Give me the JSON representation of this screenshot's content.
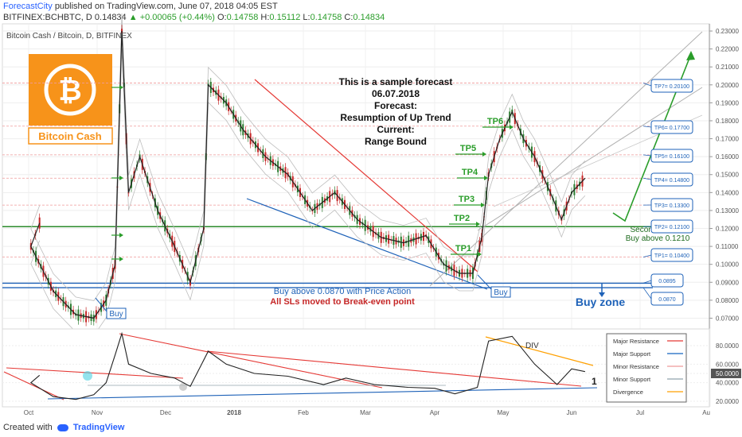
{
  "header": {
    "author": "ForecastCity",
    "published_text": "published on TradingView.com, June 07, 2018 04:05 EST",
    "symbol": "BITFINEX:BCHBTC, D",
    "last": "0.14834",
    "change": "+0.00065 (+0.44%)",
    "ohlc": {
      "o": "0.14758",
      "h": "0.15112",
      "l": "0.14758",
      "c": "0.14834"
    },
    "o_label": "O:",
    "h_label": "H:",
    "l_label": "L:",
    "c_label": "C:"
  },
  "footer": {
    "created_with": "Created with",
    "brand": "TradingView"
  },
  "chart_data": [
    {
      "type": "line",
      "name_label": "Bitcoin Cash / Bitcoin, D, BITFINEX",
      "logo_text": "Bitcoin Cash",
      "x_labels": [
        "Oct",
        "Nov",
        "Dec",
        "2018",
        "Feb",
        "Mar",
        "Apr",
        "May",
        "Jun",
        "Jul",
        "Au"
      ],
      "y_ticks": [
        "0.23000",
        "0.22000",
        "0.21000",
        "0.20000",
        "0.19000",
        "0.18000",
        "0.17000",
        "0.16000",
        "0.15000",
        "0.14000",
        "0.13000",
        "0.12000",
        "0.11000",
        "0.10000",
        "0.09000",
        "0.08000",
        "0.07000"
      ],
      "ylim": [
        0.064,
        0.234
      ],
      "price_path": [
        {
          "x": "Sep 25",
          "y": 0.123
        },
        {
          "x": "Oct 2",
          "y": 0.11
        },
        {
          "x": "Oct 12",
          "y": 0.085
        },
        {
          "x": "Oct 22",
          "y": 0.072
        },
        {
          "x": "Oct 30",
          "y": 0.07
        },
        {
          "x": "Nov 5",
          "y": 0.08
        },
        {
          "x": "Nov 9",
          "y": 0.1
        },
        {
          "x": "Nov 12",
          "y": 0.23
        },
        {
          "x": "Nov 15",
          "y": 0.14
        },
        {
          "x": "Nov 20",
          "y": 0.16
        },
        {
          "x": "Nov 28",
          "y": 0.13
        },
        {
          "x": "Dec 5",
          "y": 0.11
        },
        {
          "x": "Dec 12",
          "y": 0.09
        },
        {
          "x": "Dec 18",
          "y": 0.12
        },
        {
          "x": "Dec 20",
          "y": 0.2
        },
        {
          "x": "Dec 28",
          "y": 0.19
        },
        {
          "x": "Jan 5",
          "y": 0.175
        },
        {
          "x": "Jan 15",
          "y": 0.16
        },
        {
          "x": "Jan 25",
          "y": 0.15
        },
        {
          "x": "Feb 5",
          "y": 0.13
        },
        {
          "x": "Feb 15",
          "y": 0.14
        },
        {
          "x": "Feb 25",
          "y": 0.125
        },
        {
          "x": "Mar 8",
          "y": 0.115
        },
        {
          "x": "Mar 18",
          "y": 0.112
        },
        {
          "x": "Mar 28",
          "y": 0.116
        },
        {
          "x": "Apr 5",
          "y": 0.1
        },
        {
          "x": "Apr 12",
          "y": 0.095
        },
        {
          "x": "Apr 18",
          "y": 0.095
        },
        {
          "x": "Apr 22",
          "y": 0.115
        },
        {
          "x": "Apr 25",
          "y": 0.15
        },
        {
          "x": "Apr 30",
          "y": 0.17
        },
        {
          "x": "May 5",
          "y": 0.185
        },
        {
          "x": "May 10",
          "y": 0.17
        },
        {
          "x": "May 15",
          "y": 0.16
        },
        {
          "x": "May 22",
          "y": 0.14
        },
        {
          "x": "May 27",
          "y": 0.125
        },
        {
          "x": "Jun 1",
          "y": 0.14
        },
        {
          "x": "Jun 7",
          "y": 0.148
        }
      ],
      "levels": [
        {
          "name": "TP7",
          "label": "TP7= 0.20100",
          "value": 0.201
        },
        {
          "name": "TP6",
          "label": "TP6= 0.17700",
          "value": 0.177
        },
        {
          "name": "TP5",
          "label": "TP5= 0.16100",
          "value": 0.161
        },
        {
          "name": "TP4",
          "label": "TP4= 0.14800",
          "value": 0.148
        },
        {
          "name": "TP3",
          "label": "TP3= 0.13300",
          "value": 0.133
        },
        {
          "name": "TP2",
          "label": "TP2= 0.12100",
          "value": 0.121
        },
        {
          "name": "TP1",
          "label": "TP1= 0.10400",
          "value": 0.104
        },
        {
          "name": "buy1",
          "label": "0.0895",
          "value": 0.0895
        },
        {
          "name": "buy2",
          "label": "0.0870",
          "value": 0.087
        }
      ],
      "tp_labels": [
        "TP1",
        "TP2",
        "TP3",
        "TP4",
        "TP5",
        "TP6"
      ],
      "annotations": {
        "forecast": [
          "This is a sample forecast",
          "06.07.2018",
          "Forecast:",
          "Resumption of Up Trend",
          "Current:",
          "Range Bound"
        ],
        "second_chance": [
          "Second chance",
          "Buy above 0.1210"
        ],
        "buy_above": "Buy above 0.0870 with Price Action",
        "sls": "All SLs moved to Break-even point",
        "buy_zone": "Buy zone",
        "buy_box": "Buy"
      }
    },
    {
      "type": "line",
      "y_ticks": [
        "80.0000",
        "60.0000",
        "50.0000",
        "40.0000",
        "20.0000"
      ],
      "ylim": [
        14,
        98
      ],
      "indicator_path": [
        {
          "x": "Sep 25",
          "y": 48
        },
        {
          "x": "Oct 2",
          "y": 40
        },
        {
          "x": "Oct 12",
          "y": 25
        },
        {
          "x": "Oct 22",
          "y": 22
        },
        {
          "x": "Oct 30",
          "y": 27
        },
        {
          "x": "Nov 5",
          "y": 40
        },
        {
          "x": "Nov 9",
          "y": 70
        },
        {
          "x": "Nov 12",
          "y": 93
        },
        {
          "x": "Nov 15",
          "y": 60
        },
        {
          "x": "Nov 25",
          "y": 50
        },
        {
          "x": "Dec 5",
          "y": 45
        },
        {
          "x": "Dec 12",
          "y": 36
        },
        {
          "x": "Dec 20",
          "y": 74
        },
        {
          "x": "Dec 28",
          "y": 60
        },
        {
          "x": "Jan 10",
          "y": 50
        },
        {
          "x": "Jan 25",
          "y": 47
        },
        {
          "x": "Feb 10",
          "y": 38
        },
        {
          "x": "Feb 20",
          "y": 45
        },
        {
          "x": "Mar 5",
          "y": 38
        },
        {
          "x": "Mar 20",
          "y": 35
        },
        {
          "x": "Apr 1",
          "y": 34
        },
        {
          "x": "Apr 10",
          "y": 28
        },
        {
          "x": "Apr 20",
          "y": 35
        },
        {
          "x": "Apr 25",
          "y": 85
        },
        {
          "x": "May 5",
          "y": 90
        },
        {
          "x": "May 15",
          "y": 60
        },
        {
          "x": "May 25",
          "y": 38
        },
        {
          "x": "Jun 1",
          "y": 55
        },
        {
          "x": "Jun 7",
          "y": 52
        }
      ],
      "div_label": "DIV",
      "pivot_label": "1",
      "legend": [
        {
          "label": "Major Resistance",
          "color": "#e53935"
        },
        {
          "label": "Major Support",
          "color": "#1565c0"
        },
        {
          "label": "Minor Resistance",
          "color": "#ef9a9a"
        },
        {
          "label": "Minor Support",
          "color": "#90a4ae"
        },
        {
          "label": "Divergence",
          "color": "#ffa000"
        }
      ]
    }
  ]
}
